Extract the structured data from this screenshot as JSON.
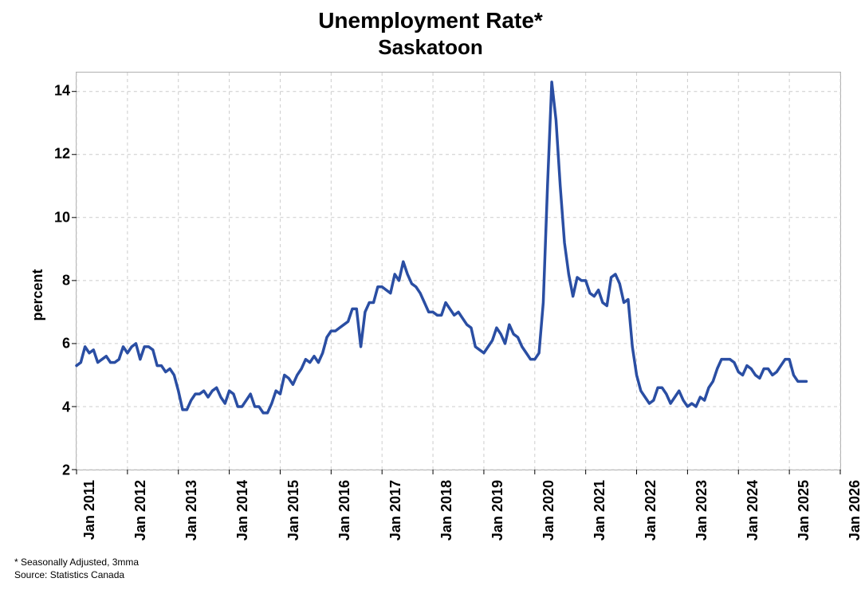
{
  "chart": {
    "type": "line",
    "title_line1": "Unemployment Rate*",
    "title_line2": "Saskatoon",
    "title_fontsize": 28,
    "ylabel": "percent",
    "label_fontsize": 18,
    "background_color": "#ffffff",
    "plot_border_color": "#b0b0b0",
    "grid_color": "#cccccc",
    "grid_dash": "4,4",
    "line_color": "#2a4ea3",
    "line_width": 3.5,
    "x_start_index": 0,
    "x_end_index": 180,
    "xtick_labels": [
      "Jan 2011",
      "Jan 2012",
      "Jan 2013",
      "Jan 2014",
      "Jan 2015",
      "Jan 2016",
      "Jan 2017",
      "Jan 2018",
      "Jan 2019",
      "Jan 2020",
      "Jan 2021",
      "Jan 2022",
      "Jan 2023",
      "Jan 2024",
      "Jan 2025",
      "Jan 2026"
    ],
    "xtick_positions": [
      0,
      12,
      24,
      36,
      48,
      60,
      72,
      84,
      96,
      108,
      120,
      132,
      144,
      156,
      168,
      180
    ],
    "ylim": [
      2,
      14.6
    ],
    "yticks": [
      2,
      4,
      6,
      8,
      10,
      12,
      14
    ],
    "tick_fontsize": 18,
    "values": [
      5.3,
      5.4,
      5.9,
      5.7,
      5.8,
      5.4,
      5.5,
      5.6,
      5.4,
      5.4,
      5.5,
      5.9,
      5.7,
      5.9,
      6.0,
      5.5,
      5.9,
      5.9,
      5.8,
      5.3,
      5.3,
      5.1,
      5.2,
      5.0,
      4.5,
      3.9,
      3.9,
      4.2,
      4.4,
      4.4,
      4.5,
      4.3,
      4.5,
      4.6,
      4.3,
      4.1,
      4.5,
      4.4,
      4.0,
      4.0,
      4.2,
      4.4,
      4.0,
      4.0,
      3.8,
      3.8,
      4.1,
      4.5,
      4.4,
      5.0,
      4.9,
      4.7,
      5.0,
      5.2,
      5.5,
      5.4,
      5.6,
      5.4,
      5.7,
      6.2,
      6.4,
      6.4,
      6.5,
      6.6,
      6.7,
      7.1,
      7.1,
      5.9,
      7.0,
      7.3,
      7.3,
      7.8,
      7.8,
      7.7,
      7.6,
      8.2,
      8.0,
      8.6,
      8.2,
      7.9,
      7.8,
      7.6,
      7.3,
      7.0,
      7.0,
      6.9,
      6.9,
      7.3,
      7.1,
      6.9,
      7.0,
      6.8,
      6.6,
      6.5,
      5.9,
      5.8,
      5.7,
      5.9,
      6.1,
      6.5,
      6.3,
      6.0,
      6.6,
      6.3,
      6.2,
      5.9,
      5.7,
      5.5,
      5.5,
      5.7,
      7.3,
      11.0,
      14.3,
      13.1,
      11.0,
      9.2,
      8.2,
      7.5,
      8.1,
      8.0,
      8.0,
      7.6,
      7.5,
      7.7,
      7.3,
      7.2,
      8.1,
      8.2,
      7.9,
      7.3,
      7.4,
      5.9,
      5.0,
      4.5,
      4.3,
      4.1,
      4.2,
      4.6,
      4.6,
      4.4,
      4.1,
      4.3,
      4.5,
      4.2,
      4.0,
      4.1,
      4.0,
      4.3,
      4.2,
      4.6,
      4.8,
      5.2,
      5.5,
      5.5,
      5.5,
      5.4,
      5.1,
      5.0,
      5.3,
      5.2,
      5.0,
      4.9,
      5.2,
      5.2,
      5.0,
      5.1,
      5.3,
      5.5,
      5.5,
      5.0,
      4.8,
      4.8,
      4.8
    ],
    "footnote1": "* Seasonally Adjusted, 3mma",
    "footnote2": "Source: Statistics Canada",
    "footnote_fontsize": 12
  }
}
